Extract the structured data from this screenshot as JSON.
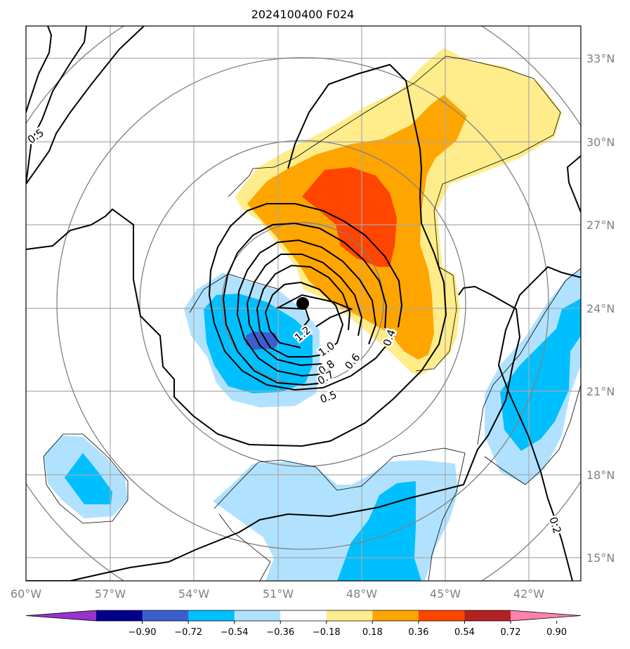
{
  "title": "2024100400 F024",
  "lat_ticks": [
    "15°N",
    "18°N",
    "21°N",
    "24°N",
    "27°N",
    "30°N",
    "33°N"
  ],
  "lon_ticks": [
    "60°W",
    "57°W",
    "54°W",
    "51°W",
    "48°W",
    "45°W",
    "42°W"
  ],
  "colorbar": {
    "tick_labels": [
      "−0.90",
      "−0.72",
      "−0.54",
      "−0.36",
      "−0.18",
      "0.18",
      "0.36",
      "0.54",
      "0.72",
      "0.90"
    ],
    "colors": [
      "#9932cc",
      "#00008b",
      "#3a5fcd",
      "#00bfff",
      "#b0e2ff",
      "#ffffff",
      "#ffec8b",
      "#ffa500",
      "#ff4500",
      "#b22222",
      "#ff82ab"
    ]
  },
  "contour_labels": [
    "0.5",
    "1.2",
    "1.0",
    "0.8",
    "0.7",
    "0.6",
    "0.5",
    "0.4",
    "0.2"
  ],
  "colors": {
    "grid": "#a9a9a9",
    "range_rings": "#808080",
    "center_marker": "#000000"
  }
}
